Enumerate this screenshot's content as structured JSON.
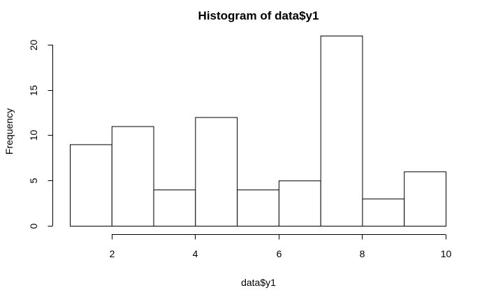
{
  "chart_data": {
    "type": "bar",
    "title": "Histogram of data$y1",
    "xlabel": "data$y1",
    "ylabel": "Frequency",
    "bins": [
      {
        "from": 1,
        "to": 2,
        "count": 9
      },
      {
        "from": 2,
        "to": 3,
        "count": 11
      },
      {
        "from": 3,
        "to": 4,
        "count": 4
      },
      {
        "from": 4,
        "to": 5,
        "count": 12
      },
      {
        "from": 5,
        "to": 6,
        "count": 4
      },
      {
        "from": 6,
        "to": 7,
        "count": 5
      },
      {
        "from": 7,
        "to": 8,
        "count": 21
      },
      {
        "from": 8,
        "to": 9,
        "count": 3
      },
      {
        "from": 9,
        "to": 10,
        "count": 6
      }
    ],
    "xlim": [
      1,
      10
    ],
    "ylim": [
      0,
      21
    ],
    "x_ticks": [
      2,
      4,
      6,
      8,
      10
    ],
    "x_tick_labels": [
      "2",
      "4",
      "6",
      "8",
      "10"
    ],
    "y_ticks": [
      0,
      5,
      10,
      15,
      20
    ],
    "y_tick_labels": [
      "0",
      "5",
      "10",
      "15",
      "20"
    ],
    "grid": false,
    "bar_fill": "#ffffff",
    "bar_stroke": "#000000"
  }
}
